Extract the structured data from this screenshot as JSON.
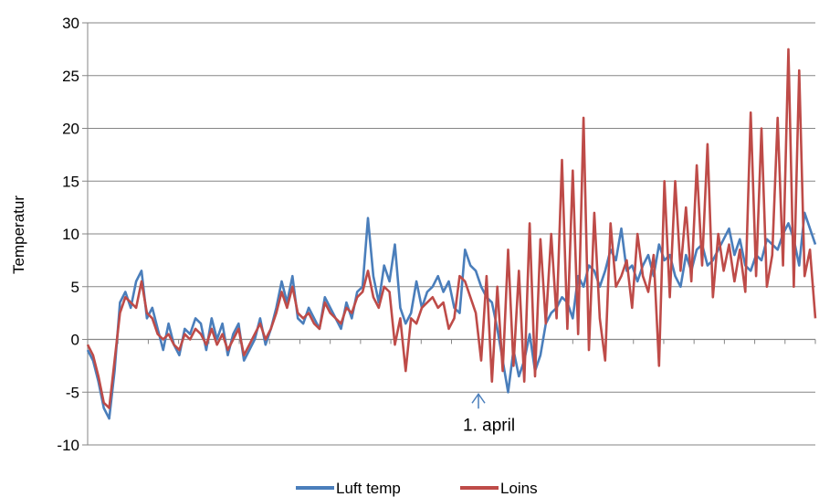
{
  "chart_data": {
    "type": "line",
    "title": "",
    "xlabel": "",
    "ylabel": "Temperatur",
    "ylim": [
      -10,
      30
    ],
    "yticks": [
      -10,
      -5,
      0,
      5,
      10,
      15,
      20,
      25,
      30
    ],
    "x_tick_count": 24,
    "grid": "horizontal",
    "legend": "bottom",
    "x_range": [
      0,
      270
    ],
    "annotation": {
      "text": "1. april",
      "x": 145,
      "y": -5
    },
    "series": [
      {
        "name": "Luft temp",
        "color": "#4a7ebb",
        "x": [
          0,
          2,
          4,
          6,
          8,
          10,
          12,
          14,
          16,
          18,
          20,
          22,
          24,
          26,
          28,
          30,
          32,
          34,
          36,
          38,
          40,
          42,
          44,
          46,
          48,
          50,
          52,
          54,
          56,
          58,
          60,
          62,
          64,
          66,
          68,
          70,
          72,
          74,
          76,
          78,
          80,
          82,
          84,
          86,
          88,
          90,
          92,
          94,
          96,
          98,
          100,
          102,
          104,
          106,
          108,
          110,
          112,
          114,
          116,
          118,
          120,
          122,
          124,
          126,
          128,
          130,
          132,
          134,
          136,
          138,
          140,
          142,
          144,
          146,
          148,
          150,
          152,
          154,
          156,
          158,
          160,
          162,
          164,
          166,
          168,
          170,
          172,
          174,
          176,
          178,
          180,
          182,
          184,
          186,
          188,
          190,
          192,
          194,
          196,
          198,
          200,
          202,
          204,
          206,
          208,
          210,
          212,
          214,
          216,
          218,
          220,
          222,
          224,
          226,
          228,
          230,
          232,
          234,
          236,
          238,
          240,
          242,
          244,
          246,
          248,
          250,
          252,
          254,
          256,
          258,
          260,
          262,
          264,
          266,
          268,
          270
        ],
        "values": [
          -1.0,
          -2.0,
          -4.0,
          -6.5,
          -7.5,
          -3.0,
          3.5,
          4.5,
          3.0,
          5.5,
          6.5,
          2.0,
          3.0,
          1.0,
          -1.0,
          1.5,
          -0.5,
          -1.5,
          1.0,
          0.5,
          2.0,
          1.5,
          -1.0,
          2.0,
          0.0,
          1.5,
          -1.5,
          0.5,
          1.5,
          -2.0,
          -1.0,
          0.0,
          2.0,
          -0.5,
          1.0,
          3.0,
          5.5,
          3.5,
          6.0,
          2.0,
          1.5,
          3.0,
          2.0,
          1.0,
          4.0,
          3.0,
          2.0,
          1.0,
          3.5,
          2.0,
          4.5,
          5.0,
          11.5,
          6.0,
          3.5,
          7.0,
          5.5,
          9.0,
          3.0,
          1.5,
          2.5,
          5.5,
          3.0,
          4.5,
          5.0,
          6.0,
          4.5,
          5.5,
          3.0,
          2.5,
          8.5,
          7.0,
          6.5,
          5.0,
          4.0,
          3.5,
          1.0,
          -2.0,
          -5.0,
          -1.0,
          -3.5,
          -2.0,
          0.5,
          -3.0,
          -1.5,
          1.5,
          2.5,
          3.0,
          4.0,
          3.5,
          2.0,
          6.0,
          5.0,
          7.0,
          6.5,
          5.0,
          6.5,
          8.5,
          7.5,
          10.5,
          6.5,
          7.0,
          5.5,
          7.0,
          8.0,
          6.0,
          9.0,
          7.5,
          8.0,
          6.0,
          5.0,
          8.0,
          6.5,
          8.5,
          9.0,
          7.0,
          7.5,
          8.5,
          9.5,
          10.5,
          8.0,
          9.5,
          7.0,
          6.5,
          8.0,
          7.5,
          9.5,
          9.0,
          8.5,
          10.0,
          11.0,
          9.5,
          7.0,
          12.0,
          10.5,
          9.0
        ]
      },
      {
        "name": "Loins",
        "color": "#be4b48",
        "x": [
          0,
          2,
          4,
          6,
          8,
          10,
          12,
          14,
          16,
          18,
          20,
          22,
          24,
          26,
          28,
          30,
          32,
          34,
          36,
          38,
          40,
          42,
          44,
          46,
          48,
          50,
          52,
          54,
          56,
          58,
          60,
          62,
          64,
          66,
          68,
          70,
          72,
          74,
          76,
          78,
          80,
          82,
          84,
          86,
          88,
          90,
          92,
          94,
          96,
          98,
          100,
          102,
          104,
          106,
          108,
          110,
          112,
          114,
          116,
          118,
          120,
          122,
          124,
          126,
          128,
          130,
          132,
          134,
          136,
          138,
          140,
          142,
          144,
          146,
          148,
          150,
          152,
          154,
          156,
          158,
          160,
          162,
          164,
          166,
          168,
          170,
          172,
          174,
          176,
          178,
          180,
          182,
          184,
          186,
          188,
          190,
          192,
          194,
          196,
          198,
          200,
          202,
          204,
          206,
          208,
          210,
          212,
          214,
          216,
          218,
          220,
          222,
          224,
          226,
          228,
          230,
          232,
          234,
          236,
          238,
          240,
          242,
          244,
          246,
          248,
          250,
          252,
          254,
          256,
          258,
          260,
          262,
          264,
          266,
          268,
          270
        ],
        "values": [
          -0.5,
          -1.5,
          -3.5,
          -6.0,
          -6.5,
          -2.0,
          2.5,
          4.0,
          3.5,
          3.0,
          5.5,
          2.5,
          2.0,
          0.5,
          0.0,
          0.5,
          -0.5,
          -1.0,
          0.5,
          0.0,
          1.0,
          0.5,
          -0.5,
          1.0,
          -0.5,
          0.5,
          -1.0,
          0.0,
          1.0,
          -1.5,
          -0.5,
          0.5,
          1.5,
          0.0,
          1.0,
          2.5,
          4.5,
          3.0,
          5.0,
          2.5,
          2.0,
          2.5,
          1.5,
          1.0,
          3.5,
          2.5,
          2.0,
          1.5,
          3.0,
          2.5,
          4.0,
          4.5,
          6.5,
          4.0,
          3.0,
          5.0,
          4.5,
          -0.5,
          2.0,
          -3.0,
          2.0,
          1.5,
          3.0,
          3.5,
          4.0,
          3.0,
          3.5,
          1.0,
          2.0,
          6.0,
          5.5,
          4.0,
          2.5,
          -2.0,
          6.0,
          -4.0,
          5.0,
          -3.0,
          8.5,
          -2.5,
          6.5,
          -4.0,
          11.0,
          -3.5,
          9.5,
          1.5,
          10.0,
          2.0,
          17.0,
          1.0,
          16.0,
          0.5,
          21.0,
          -1.0,
          12.0,
          2.0,
          -2.0,
          11.0,
          5.0,
          6.0,
          7.5,
          3.0,
          10.0,
          6.0,
          4.5,
          8.0,
          -2.5,
          15.0,
          4.0,
          15.0,
          6.5,
          12.5,
          5.5,
          16.5,
          7.0,
          18.5,
          4.0,
          10.0,
          6.5,
          9.0,
          5.5,
          8.5,
          4.5,
          21.5,
          6.0,
          20.0,
          5.0,
          8.0,
          21.0,
          7.0,
          27.5,
          5.0,
          25.5,
          6.0,
          8.5,
          2.0
        ]
      }
    ]
  }
}
